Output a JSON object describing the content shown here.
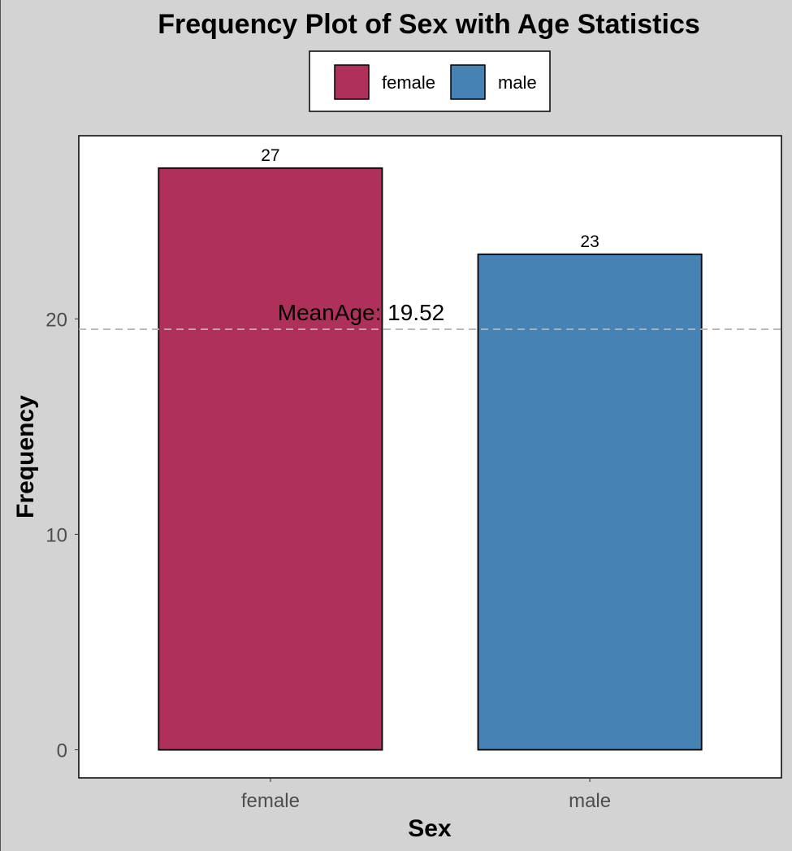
{
  "chart_data": {
    "type": "bar",
    "title": "Frequency Plot of Sex with Age Statistics",
    "xlabel": "Sex",
    "ylabel": "Frequency",
    "categories": [
      "female",
      "male"
    ],
    "values": [
      27,
      23
    ],
    "colors": [
      "#b0305c",
      "#4682b4"
    ],
    "ylim": [
      -1.3,
      28.5
    ],
    "yticks": [
      0,
      10,
      20
    ],
    "legend": {
      "position": "top",
      "entries": [
        "female",
        "male"
      ]
    },
    "reference_line": {
      "value": 19.52,
      "label": "MeanAge: 19.52",
      "style": "dashed",
      "color": "#b3b3b3"
    },
    "grid": false
  }
}
